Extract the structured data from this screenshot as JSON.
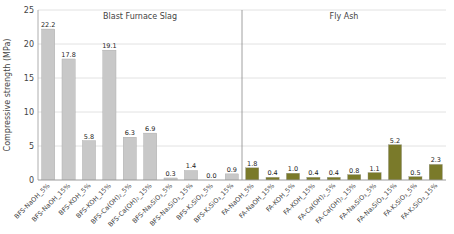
{
  "chart_data": {
    "type": "bar",
    "categories": [
      "BFS-NaOH_5%",
      "BFS-NaOH_15%",
      "BFS-KOH_5%",
      "BFS-KOH_15%",
      "BFS-Ca(OH)₂_5%",
      "BFS-Ca(OH)₂_15%",
      "BFS-Na₂SiO₃_5%",
      "BFS-Na₂SiO₃_15%",
      "BFS-K₂SiO₃_5%",
      "BFS-K₂SiO₃_15%",
      "FA-NaOH_5%",
      "FA-NaOH_15%",
      "FA-KOH_5%",
      "FA-KOH_15%",
      "FA-Ca(OH)₂_5%",
      "FA-Ca(OH)₂_15%",
      "FA-Na₂SiO₃_5%",
      "FA-Na₂SiO₃_15%",
      "FA-K₂SiO₃_5%",
      "FA-K₂SiO₃_15%"
    ],
    "values": [
      22.2,
      17.8,
      5.8,
      19.1,
      6.3,
      6.9,
      0.3,
      1.4,
      0.0,
      0.9,
      1.8,
      0.4,
      1.0,
      0.4,
      0.4,
      0.8,
      1.1,
      5.2,
      0.5,
      2.3
    ],
    "value_labels": [
      "22.2",
      "17.8",
      "5.8",
      "19.1",
      "6.3",
      "6.9",
      "0.3",
      "1.4",
      "0.0",
      "0.9",
      "1.8",
      "0.4",
      "1.0",
      "0.4",
      "0.4",
      "0.8",
      "1.1",
      "5.2",
      "0.5",
      "2.3"
    ],
    "colors": [
      "#c8c8c8",
      "#c8c8c8",
      "#c8c8c8",
      "#c8c8c8",
      "#c8c8c8",
      "#c8c8c8",
      "#c8c8c8",
      "#c8c8c8",
      "#c8c8c8",
      "#c8c8c8",
      "#7a7a2a",
      "#7a7a2a",
      "#7a7a2a",
      "#7a7a2a",
      "#7a7a2a",
      "#7a7a2a",
      "#7a7a2a",
      "#7a7a2a",
      "#7a7a2a",
      "#7a7a2a"
    ],
    "y_label": "Compressive strength (MPa)",
    "annotations": [
      "Blast Furnace Slag",
      "Fly Ash"
    ],
    "ylim": [
      0,
      25
    ],
    "yticks": [
      0,
      5,
      10,
      15,
      20,
      25
    ],
    "grid": true,
    "data_labels": true
  }
}
